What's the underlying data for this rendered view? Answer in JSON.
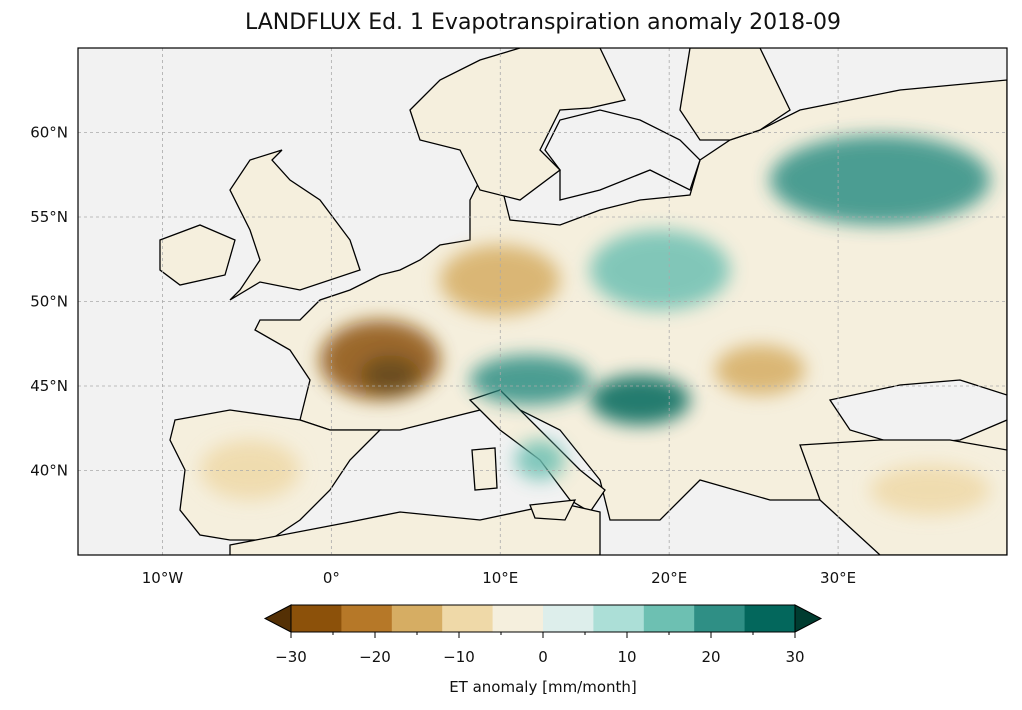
{
  "title": "LANDFLUX Ed. 1 Evapotranspiration anomaly 2018-09",
  "map": {
    "lon_range": [
      -15,
      40
    ],
    "lat_range": [
      35,
      65
    ],
    "lon_ticks": [
      {
        "value": -10,
        "label": "10°W"
      },
      {
        "value": 0,
        "label": "0°"
      },
      {
        "value": 10,
        "label": "10°E"
      },
      {
        "value": 20,
        "label": "20°E"
      },
      {
        "value": 30,
        "label": "30°E"
      }
    ],
    "lat_ticks": [
      {
        "value": 60,
        "label": "60°N"
      },
      {
        "value": 55,
        "label": "55°N"
      },
      {
        "value": 50,
        "label": "50°N"
      },
      {
        "value": 45,
        "label": "45°N"
      },
      {
        "value": 40,
        "label": "40°N"
      }
    ],
    "ocean_color": "#f2f2f2"
  },
  "colorbar": {
    "label": "ET anomaly [mm/month]",
    "range": [
      -30,
      30
    ],
    "ticks": [
      {
        "value": -30,
        "label": "−30"
      },
      {
        "value": -20,
        "label": "−20"
      },
      {
        "value": -10,
        "label": "−10"
      },
      {
        "value": 0,
        "label": "0"
      },
      {
        "value": 10,
        "label": "10"
      },
      {
        "value": 20,
        "label": "20"
      },
      {
        "value": 30,
        "label": "30"
      }
    ],
    "colors": [
      "#543005",
      "#8c510a",
      "#b67828",
      "#d6ad63",
      "#efd9a8",
      "#f5efdd",
      "#ddeeeb",
      "#acdfd7",
      "#6dc0b2",
      "#2f8f85",
      "#03675c",
      "#003c30"
    ]
  }
}
